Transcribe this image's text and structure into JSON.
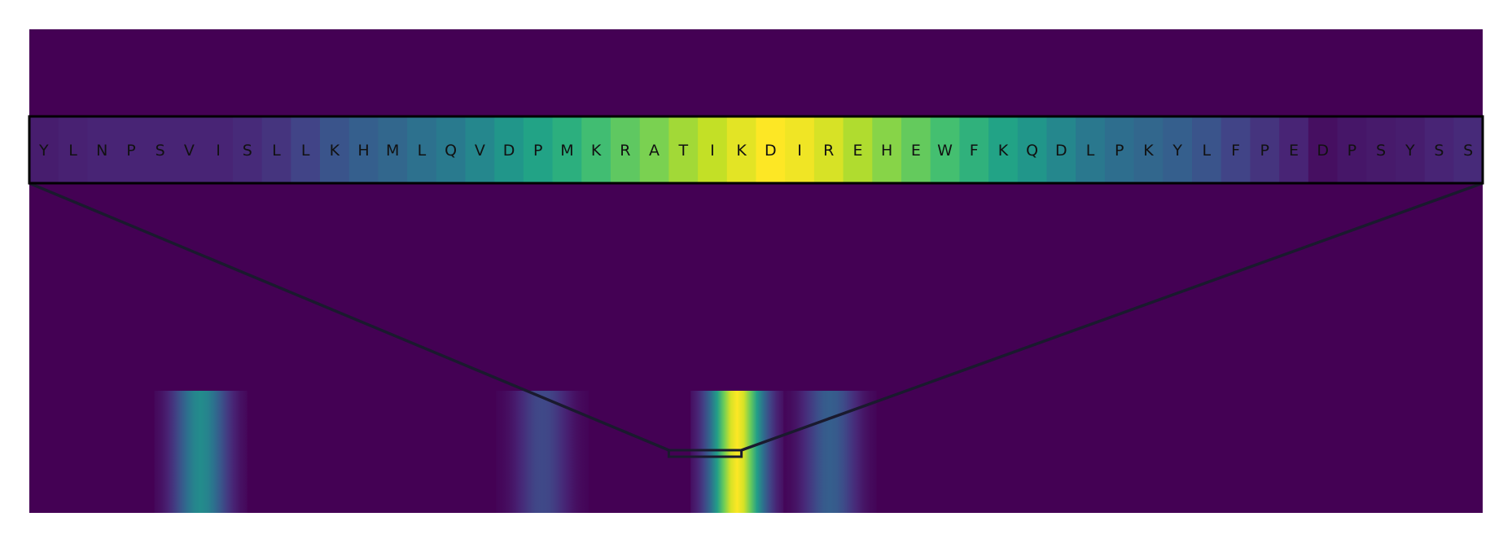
{
  "chart_data": {
    "type": "heatmap",
    "colormap": "viridis",
    "background_color": "#440154",
    "zoom_panel": {
      "residues": [
        "Y",
        "L",
        "N",
        "P",
        "S",
        "V",
        "I",
        "S",
        "L",
        "L",
        "K",
        "H",
        "M",
        "L",
        "Q",
        "V",
        "D",
        "P",
        "M",
        "K",
        "R",
        "A",
        "T",
        "I",
        "K",
        "D",
        "I",
        "R",
        "E",
        "H",
        "E",
        "W",
        "F",
        "K",
        "Q",
        "D",
        "L",
        "P",
        "K",
        "Y",
        "L",
        "F",
        "P",
        "E",
        "D",
        "P",
        "S",
        "Y",
        "S",
        "S"
      ],
      "values": [
        0.08,
        0.09,
        0.1,
        0.1,
        0.1,
        0.1,
        0.1,
        0.12,
        0.15,
        0.2,
        0.26,
        0.3,
        0.33,
        0.37,
        0.41,
        0.46,
        0.52,
        0.58,
        0.63,
        0.69,
        0.75,
        0.8,
        0.86,
        0.91,
        0.96,
        1.0,
        0.98,
        0.94,
        0.88,
        0.82,
        0.76,
        0.7,
        0.64,
        0.58,
        0.52,
        0.46,
        0.4,
        0.36,
        0.33,
        0.3,
        0.26,
        0.2,
        0.15,
        0.1,
        0.04,
        0.06,
        0.07,
        0.08,
        0.1,
        0.12
      ]
    },
    "overview": {
      "sequence_length": 1000,
      "window_range": [
        440,
        490
      ],
      "peaks": [
        {
          "center": 118,
          "half_width": 32,
          "value": 0.48
        },
        {
          "center": 353,
          "half_width": 32,
          "value": 0.22
        },
        {
          "center": 487,
          "half_width": 32,
          "value": 1.0
        },
        {
          "center": 551,
          "half_width": 32,
          "value": 0.3
        }
      ]
    }
  }
}
